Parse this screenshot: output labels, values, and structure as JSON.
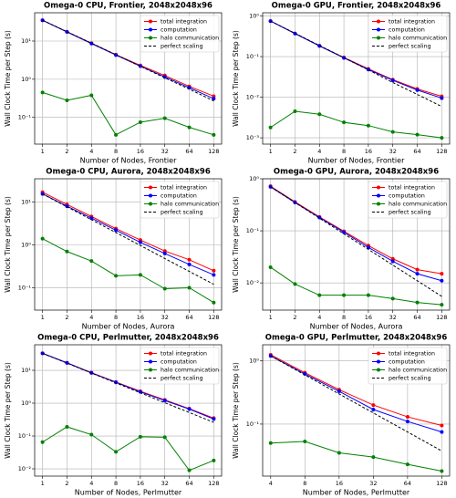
{
  "chart_data": [
    {
      "type": "line",
      "title": "Omega-0 CPU, Frontier, 2048x2048x96",
      "xlabel": "Number of Nodes, Frontier",
      "ylabel": "Wall Clock Time per Step (s)",
      "x": [
        1,
        2,
        4,
        8,
        16,
        32,
        64,
        128
      ],
      "xlim": [
        0.8,
        160
      ],
      "xticks": [
        1,
        2,
        4,
        8,
        16,
        32,
        64,
        128
      ],
      "log_x": true,
      "ylim": [
        0.02,
        55
      ],
      "yticks": [
        {
          "value": 0.1,
          "label": "10⁻¹"
        },
        {
          "value": 1,
          "label": "10⁰"
        },
        {
          "value": 10,
          "label": "10¹"
        }
      ],
      "log_y": true,
      "grid": true,
      "legend": "upper right",
      "series": [
        {
          "name": "total integration",
          "color": "#ff0000",
          "marker": "o",
          "linestyle": "solid",
          "values": [
            35,
            17.5,
            8.8,
            4.4,
            2.3,
            1.25,
            0.65,
            0.36
          ]
        },
        {
          "name": "computation",
          "color": "#0000ff",
          "marker": "o",
          "linestyle": "solid",
          "values": [
            35,
            17.3,
            8.6,
            4.3,
            2.2,
            1.15,
            0.6,
            0.31
          ]
        },
        {
          "name": "halo communication",
          "color": "#008000",
          "marker": "o",
          "linestyle": "solid",
          "values": [
            0.45,
            0.28,
            0.38,
            0.035,
            0.075,
            0.095,
            0.055,
            0.035
          ]
        },
        {
          "name": "perfect scaling",
          "color": "#000000",
          "marker": "none",
          "linestyle": "dashed",
          "values": [
            35,
            17.5,
            8.75,
            4.38,
            2.19,
            1.09,
            0.55,
            0.27
          ]
        }
      ]
    },
    {
      "type": "line",
      "title": "Omega-0 GPU, Frontier, 2048x2048x96",
      "xlabel": "Number of Nodes, Frontier",
      "ylabel": "Wall Clock Time per Step (s)",
      "x": [
        1,
        2,
        4,
        8,
        16,
        32,
        64,
        128
      ],
      "xlim": [
        0.8,
        160
      ],
      "xticks": [
        1,
        2,
        4,
        8,
        16,
        32,
        64,
        128
      ],
      "log_x": true,
      "ylim": [
        0.0007,
        1.2
      ],
      "yticks": [
        {
          "value": 0.001,
          "label": "10⁻³"
        },
        {
          "value": 0.01,
          "label": "10⁻²"
        },
        {
          "value": 0.1,
          "label": "10⁻¹"
        },
        {
          "value": 1,
          "label": "10⁰"
        }
      ],
      "log_y": true,
      "grid": true,
      "legend": "upper right",
      "series": [
        {
          "name": "total integration",
          "color": "#ff0000",
          "marker": "o",
          "linestyle": "solid",
          "values": [
            0.75,
            0.37,
            0.185,
            0.095,
            0.05,
            0.027,
            0.016,
            0.0105
          ]
        },
        {
          "name": "computation",
          "color": "#0000ff",
          "marker": "o",
          "linestyle": "solid",
          "values": [
            0.75,
            0.37,
            0.183,
            0.093,
            0.048,
            0.026,
            0.015,
            0.0095
          ]
        },
        {
          "name": "halo communication",
          "color": "#008000",
          "marker": "o",
          "linestyle": "solid",
          "values": [
            0.0018,
            0.0045,
            0.0038,
            0.0024,
            0.002,
            0.0014,
            0.0012,
            0.001
          ]
        },
        {
          "name": "perfect scaling",
          "color": "#000000",
          "marker": "none",
          "linestyle": "dashed",
          "values": [
            0.75,
            0.375,
            0.1875,
            0.094,
            0.047,
            0.023,
            0.0117,
            0.0059
          ]
        }
      ]
    },
    {
      "type": "line",
      "title": "Omega-0 CPU, Aurora, 2048x2048x96",
      "xlabel": "Number of Nodes, Aurora",
      "ylabel": "Wall Clock Time per Step (s)",
      "x": [
        1,
        2,
        4,
        8,
        16,
        32,
        64,
        128
      ],
      "xlim": [
        0.8,
        160
      ],
      "xticks": [
        1,
        2,
        4,
        8,
        16,
        32,
        64,
        128
      ],
      "log_x": true,
      "ylim": [
        0.03,
        35
      ],
      "yticks": [
        {
          "value": 0.1,
          "label": "10⁻¹"
        },
        {
          "value": 1,
          "label": "10⁰"
        },
        {
          "value": 10,
          "label": "10¹"
        }
      ],
      "log_y": true,
      "grid": true,
      "legend": "upper right",
      "series": [
        {
          "name": "total integration",
          "color": "#ff0000",
          "marker": "o",
          "linestyle": "solid",
          "values": [
            17,
            8.8,
            4.6,
            2.4,
            1.3,
            0.72,
            0.45,
            0.25
          ]
        },
        {
          "name": "computation",
          "color": "#0000ff",
          "marker": "o",
          "linestyle": "solid",
          "values": [
            15.5,
            8,
            4.2,
            2.2,
            1.15,
            0.63,
            0.35,
            0.2
          ]
        },
        {
          "name": "halo communication",
          "color": "#008000",
          "marker": "o",
          "linestyle": "solid",
          "values": [
            1.4,
            0.7,
            0.42,
            0.19,
            0.2,
            0.095,
            0.1,
            0.045
          ]
        },
        {
          "name": "perfect scaling",
          "color": "#000000",
          "marker": "none",
          "linestyle": "dashed",
          "values": [
            15.5,
            7.75,
            3.88,
            1.94,
            0.97,
            0.48,
            0.24,
            0.12
          ]
        }
      ]
    },
    {
      "type": "line",
      "title": "Omega-0 GPU, Aurora, 2048x2048x96",
      "xlabel": "Number of Nodes, Aurora",
      "ylabel": "Wall Clock Time per Step (s)",
      "x": [
        1,
        2,
        4,
        8,
        16,
        32,
        64,
        128
      ],
      "xlim": [
        0.8,
        160
      ],
      "xticks": [
        1,
        2,
        4,
        8,
        16,
        32,
        64,
        128
      ],
      "log_x": true,
      "ylim": [
        0.003,
        1.0
      ],
      "yticks": [
        {
          "value": 0.01,
          "label": "10⁻²"
        },
        {
          "value": 0.1,
          "label": "10⁻¹"
        },
        {
          "value": 1,
          "label": "10⁰"
        }
      ],
      "log_y": true,
      "grid": true,
      "legend": "upper right",
      "series": [
        {
          "name": "total integration",
          "color": "#ff0000",
          "marker": "o",
          "linestyle": "solid",
          "values": [
            0.72,
            0.36,
            0.185,
            0.098,
            0.052,
            0.029,
            0.018,
            0.015
          ]
        },
        {
          "name": "computation",
          "color": "#0000ff",
          "marker": "o",
          "linestyle": "solid",
          "values": [
            0.7,
            0.35,
            0.18,
            0.094,
            0.048,
            0.026,
            0.015,
            0.011
          ]
        },
        {
          "name": "halo communication",
          "color": "#008000",
          "marker": "o",
          "linestyle": "solid",
          "values": [
            0.02,
            0.0095,
            0.0058,
            0.0058,
            0.0058,
            0.005,
            0.0042,
            0.0038
          ]
        },
        {
          "name": "perfect scaling",
          "color": "#000000",
          "marker": "none",
          "linestyle": "dashed",
          "values": [
            0.7,
            0.35,
            0.175,
            0.0875,
            0.044,
            0.022,
            0.011,
            0.0055
          ]
        }
      ]
    },
    {
      "type": "line",
      "title": "Omega-0 CPU, Perlmutter, 2048x2048x96",
      "xlabel": "Number of Nodes, Perlmutter",
      "ylabel": "Wall Clock Time per Step (s)",
      "x": [
        1,
        2,
        4,
        8,
        16,
        32,
        64,
        128
      ],
      "xlim": [
        0.8,
        160
      ],
      "xticks": [
        1,
        2,
        4,
        8,
        16,
        32,
        64,
        128
      ],
      "log_x": true,
      "ylim": [
        0.006,
        60
      ],
      "yticks": [
        {
          "value": 0.01,
          "label": "10⁻²"
        },
        {
          "value": 0.1,
          "label": "10⁻¹"
        },
        {
          "value": 1,
          "label": "10⁰"
        },
        {
          "value": 10,
          "label": "10¹"
        }
      ],
      "log_y": true,
      "grid": true,
      "legend": "upper right",
      "series": [
        {
          "name": "total integration",
          "color": "#ff0000",
          "marker": "o",
          "linestyle": "solid",
          "values": [
            33,
            17,
            8.5,
            4.4,
            2.3,
            1.25,
            0.68,
            0.35
          ]
        },
        {
          "name": "computation",
          "color": "#0000ff",
          "marker": "o",
          "linestyle": "solid",
          "values": [
            33,
            16.8,
            8.3,
            4.3,
            2.2,
            1.2,
            0.66,
            0.33
          ]
        },
        {
          "name": "halo communication",
          "color": "#008000",
          "marker": "o",
          "linestyle": "solid",
          "values": [
            0.065,
            0.19,
            0.11,
            0.033,
            0.095,
            0.092,
            0.009,
            0.018
          ]
        },
        {
          "name": "perfect scaling",
          "color": "#000000",
          "marker": "none",
          "linestyle": "dashed",
          "values": [
            33,
            16.5,
            8.25,
            4.13,
            2.06,
            1.03,
            0.52,
            0.26
          ]
        }
      ]
    },
    {
      "type": "line",
      "title": "Omega-0 GPU, Perlmutter, 2048x2048x96",
      "xlabel": "Number of Nodes, Perlmutter",
      "ylabel": "Wall Clock Time per Step (s)",
      "x": [
        4,
        8,
        16,
        32,
        64,
        128
      ],
      "xlim": [
        3.4,
        150
      ],
      "xticks": [
        4,
        8,
        16,
        32,
        64,
        128
      ],
      "log_x": true,
      "ylim": [
        0.015,
        1.8
      ],
      "yticks": [
        {
          "value": 0.1,
          "label": "10⁻¹"
        },
        {
          "value": 1,
          "label": "10⁰"
        }
      ],
      "log_y": true,
      "grid": true,
      "legend": "upper right",
      "series": [
        {
          "name": "total integration",
          "color": "#ff0000",
          "marker": "o",
          "linestyle": "solid",
          "values": [
            1.25,
            0.65,
            0.35,
            0.2,
            0.13,
            0.095
          ]
        },
        {
          "name": "computation",
          "color": "#0000ff",
          "marker": "o",
          "linestyle": "solid",
          "values": [
            1.2,
            0.62,
            0.33,
            0.17,
            0.11,
            0.075
          ]
        },
        {
          "name": "halo communication",
          "color": "#008000",
          "marker": "o",
          "linestyle": "solid",
          "values": [
            0.05,
            0.053,
            0.035,
            0.03,
            0.023,
            0.018
          ]
        },
        {
          "name": "perfect scaling",
          "color": "#000000",
          "marker": "none",
          "linestyle": "dashed",
          "values": [
            1.2,
            0.6,
            0.3,
            0.15,
            0.075,
            0.0375
          ]
        }
      ]
    }
  ]
}
